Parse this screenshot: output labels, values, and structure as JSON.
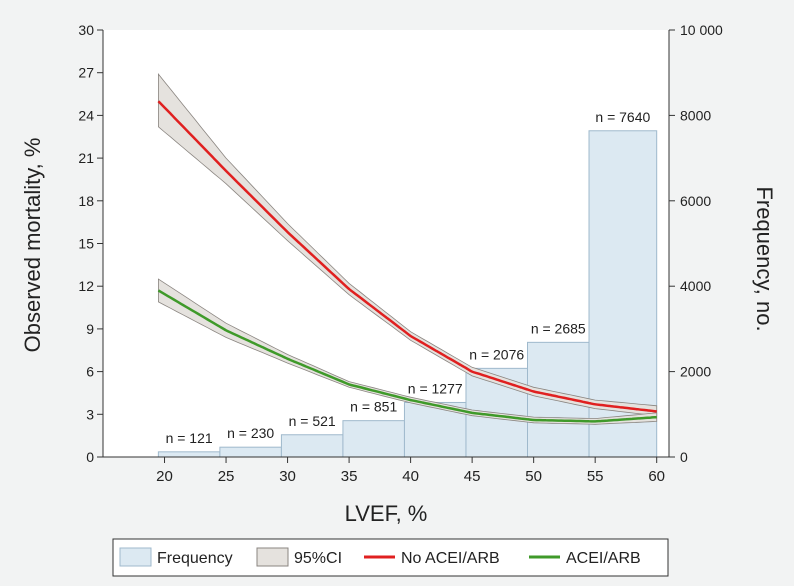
{
  "chart_data": {
    "type": "bar",
    "xlabel": "LVEF, %",
    "ylabel_left": "Observed mortality, %",
    "ylabel_right": "Frequency, no.",
    "x_ticks": [
      "20",
      "25",
      "30",
      "35",
      "40",
      "45",
      "50",
      "55",
      "60"
    ],
    "y_left_ticks": [
      "0",
      "3",
      "6",
      "9",
      "12",
      "15",
      "18",
      "21",
      "24",
      "27",
      "30"
    ],
    "y_right_ticks": [
      "0",
      "2000",
      "4000",
      "6000",
      "8000",
      "10 000"
    ],
    "xlim": [
      15,
      61
    ],
    "ylim_left": [
      0,
      30
    ],
    "ylim_right": [
      0,
      10000
    ],
    "histogram": {
      "name": "Frequency",
      "bins": [
        {
          "x0": 19.5,
          "x1": 24.5,
          "count": 121,
          "label": "n = 121"
        },
        {
          "x0": 24.5,
          "x1": 29.5,
          "count": 230,
          "label": "n = 230"
        },
        {
          "x0": 29.5,
          "x1": 34.5,
          "count": 521,
          "label": "n = 521"
        },
        {
          "x0": 34.5,
          "x1": 39.5,
          "count": 851,
          "label": "n = 851"
        },
        {
          "x0": 39.5,
          "x1": 44.5,
          "count": 1277,
          "label": "n = 1277"
        },
        {
          "x0": 44.5,
          "x1": 49.5,
          "count": 2076,
          "label": "n = 2076"
        },
        {
          "x0": 49.5,
          "x1": 54.5,
          "count": 2685,
          "label": "n = 2685"
        },
        {
          "x0": 54.5,
          "x1": 60,
          "count": 7640,
          "label": "n = 7640"
        }
      ]
    },
    "series": [
      {
        "name": "No ACEI/ARB",
        "color": "#e02020",
        "x": [
          19.5,
          25,
          30,
          35,
          40,
          45,
          50,
          55,
          60
        ],
        "y": [
          25.0,
          20.1,
          15.8,
          11.8,
          8.5,
          6.0,
          4.6,
          3.7,
          3.2
        ],
        "ci_low": [
          23.2,
          19.2,
          15.2,
          11.4,
          8.2,
          5.7,
          4.3,
          3.4,
          2.9
        ],
        "ci_high": [
          26.9,
          21.0,
          16.4,
          12.2,
          8.8,
          6.3,
          4.9,
          4.0,
          3.6
        ]
      },
      {
        "name": "ACEI/ARB",
        "color": "#3f9a2a",
        "x": [
          19.5,
          25,
          30,
          35,
          40,
          45,
          50,
          55,
          60
        ],
        "y": [
          11.7,
          8.9,
          6.9,
          5.1,
          4.0,
          3.1,
          2.6,
          2.5,
          2.8
        ],
        "ci_low": [
          10.9,
          8.4,
          6.6,
          4.9,
          3.8,
          2.9,
          2.4,
          2.3,
          2.5
        ],
        "ci_high": [
          12.5,
          9.4,
          7.2,
          5.3,
          4.2,
          3.3,
          2.8,
          2.7,
          3.1
        ]
      }
    ],
    "ci_name": "95%CI",
    "legend_position": "bottom",
    "grid": false
  },
  "colors": {
    "background": "#f2f3f3",
    "hist_fill": "#dce9f2",
    "hist_stroke": "#9fb9cc",
    "ci_fill": "#e5e2de",
    "ci_stroke": "#8a8580"
  },
  "legend": {
    "items": [
      {
        "label": "Frequency",
        "kind": "hist"
      },
      {
        "label": "95%CI",
        "kind": "ci"
      },
      {
        "label": "No ACEI/ARB",
        "kind": "line",
        "color": "#e02020"
      },
      {
        "label": "ACEI/ARB",
        "kind": "line",
        "color": "#3f9a2a"
      }
    ]
  }
}
